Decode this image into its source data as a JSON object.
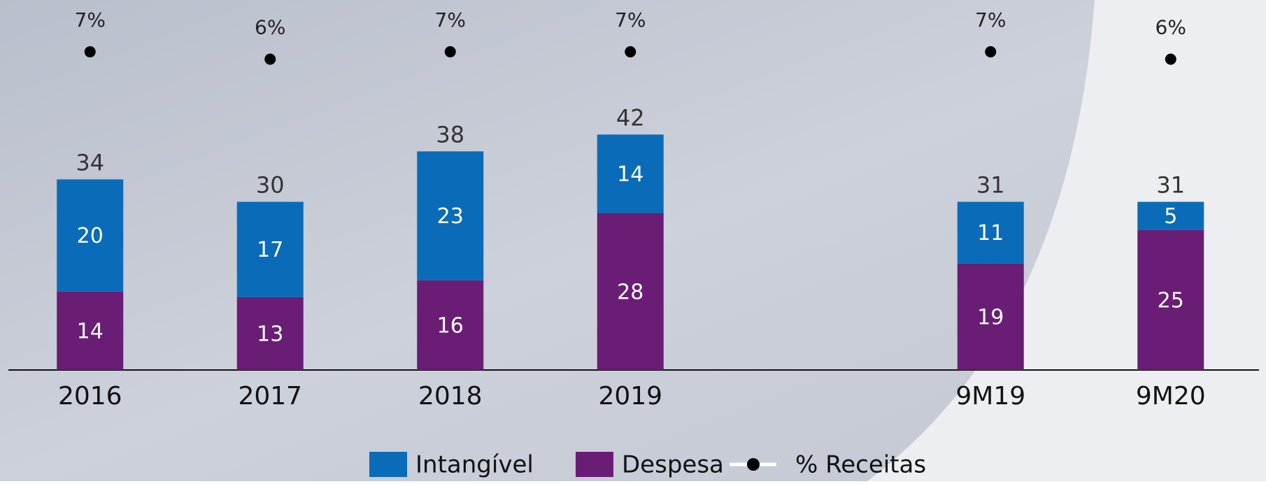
{
  "chart_data": {
    "type": "bar",
    "stacked": true,
    "categories": [
      "2016",
      "2017",
      "2018",
      "2019",
      null,
      "9M19",
      "9M20"
    ],
    "series": [
      {
        "name": "Intangível",
        "color": "#0a6cb8",
        "values": [
          20,
          17,
          23,
          14,
          null,
          11,
          5
        ]
      },
      {
        "name": "Despesa",
        "color": "#6a1d74",
        "values": [
          14,
          13,
          16,
          28,
          null,
          19,
          25
        ]
      },
      {
        "name": "% Receitas",
        "type": "line",
        "axis": "y2",
        "color": "#000000",
        "values": [
          7,
          6,
          7,
          7,
          null,
          7,
          6
        ],
        "value_labels": [
          "7%",
          "6%",
          "7%",
          "7%",
          null,
          "7%",
          "6%"
        ]
      }
    ],
    "totals": [
      34,
      30,
      38,
      42,
      null,
      31,
      31
    ],
    "ylim": [
      0,
      66
    ],
    "y2lim": [
      -36,
      14
    ],
    "legend": "bottom"
  }
}
